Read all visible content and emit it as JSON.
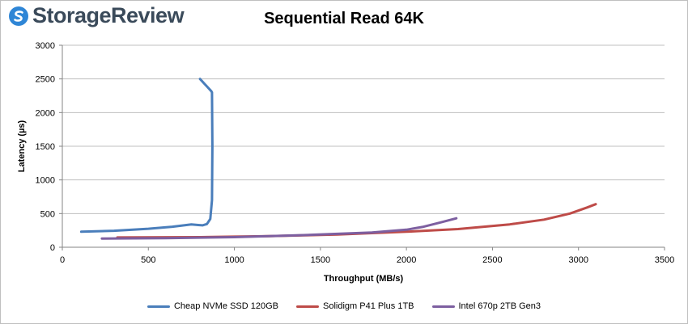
{
  "logo": {
    "text": "StorageReview"
  },
  "chart_data": {
    "type": "line",
    "title": "Sequential Read 64K",
    "xlabel": "Throughput (MB/s)",
    "ylabel": "Latency (µs)",
    "xlim": [
      0,
      3500
    ],
    "ylim": [
      0,
      3000
    ],
    "xticks": [
      "0",
      "500",
      "1000",
      "1500",
      "2000",
      "2500",
      "3000",
      "3500"
    ],
    "yticks": [
      "0",
      "500",
      "1000",
      "1500",
      "2000",
      "2500",
      "3000"
    ],
    "grid": "horizontal",
    "legend_position": "bottom",
    "series": [
      {
        "name": "Cheap NVMe SSD 120GB",
        "color": "#4a7ebb",
        "x": [
          110,
          300,
          500,
          640,
          750,
          790,
          815,
          840,
          860,
          870,
          872,
          870,
          865,
          800
        ],
        "y": [
          230,
          245,
          275,
          305,
          340,
          330,
          325,
          345,
          420,
          700,
          1500,
          2300,
          2320,
          2500
        ]
      },
      {
        "name": "Solidigm P41 Plus 1TB",
        "color": "#be4b48",
        "x": [
          320,
          800,
          1200,
          1600,
          2000,
          2300,
          2600,
          2800,
          2950,
          3050,
          3100
        ],
        "y": [
          145,
          150,
          165,
          190,
          230,
          270,
          340,
          410,
          500,
          590,
          640
        ]
      },
      {
        "name": "Intel 670p 2TB Gen3",
        "color": "#7d5fa0",
        "x": [
          230,
          600,
          1000,
          1400,
          1800,
          2000,
          2100,
          2200,
          2290
        ],
        "y": [
          130,
          135,
          150,
          180,
          220,
          260,
          305,
          370,
          430
        ]
      }
    ]
  }
}
